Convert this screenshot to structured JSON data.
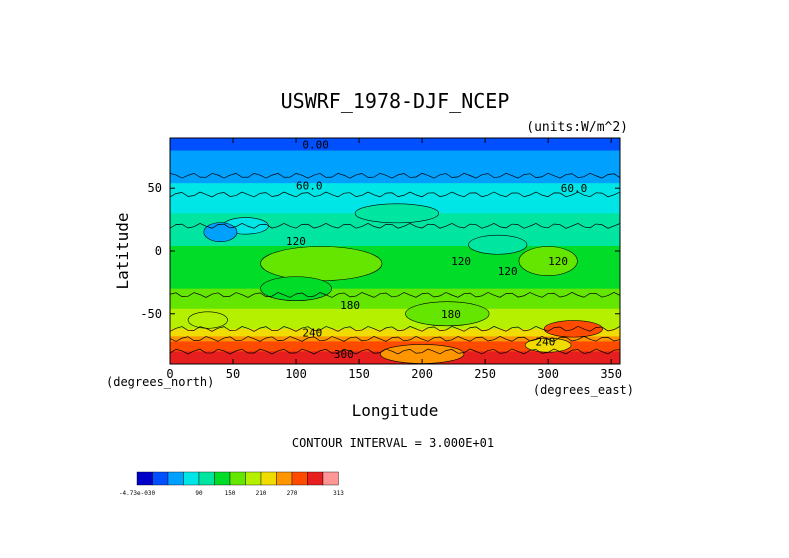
{
  "chart_data": {
    "type": "heatmap",
    "title": "USWRF_1978-DJF_NCEP",
    "units": "(units:W/m^2)",
    "xlabel": "Longitude",
    "ylabel": "Latitude",
    "x_unit_note": "(degrees_east)",
    "y_unit_note": "(degrees_north)",
    "xlim": [
      0,
      357
    ],
    "ylim": [
      -90,
      90
    ],
    "x_ticks": [
      "0",
      "50",
      "100",
      "150",
      "200",
      "250",
      "300",
      "350"
    ],
    "x_tick_values": [
      0,
      50,
      100,
      150,
      200,
      250,
      300,
      350
    ],
    "y_ticks": [
      "50",
      "0",
      "-50"
    ],
    "y_tick_values": [
      50,
      0,
      -50
    ],
    "contour_interval_text": "CONTOUR INTERVAL = 3.000E+01",
    "contour_labels": [
      "0.00",
      "60.0",
      "60.0",
      "120",
      "120",
      "120",
      "120",
      "180",
      "180",
      "240",
      "240",
      "300"
    ],
    "colorbar": {
      "colors": [
        "#0000c8",
        "#0050ff",
        "#00a0ff",
        "#00e6e6",
        "#00e6a0",
        "#00dc28",
        "#64e600",
        "#b4f000",
        "#f0dc00",
        "#ff9600",
        "#ff4b00",
        "#e61e1e",
        "#ff9696"
      ],
      "tick_labels": [
        "-4.73e-030",
        "90",
        "150",
        "210",
        "270",
        "313"
      ]
    },
    "zonal_profile": {
      "latitude": [
        90,
        80,
        70,
        60,
        50,
        40,
        30,
        20,
        10,
        0,
        -10,
        -20,
        -30,
        -40,
        -50,
        -60,
        -65,
        -70,
        -75,
        -80,
        -85,
        -90
      ],
      "value": [
        0,
        30,
        40,
        50,
        65,
        80,
        90,
        100,
        110,
        125,
        140,
        145,
        150,
        170,
        185,
        200,
        225,
        260,
        285,
        300,
        310,
        313
      ]
    }
  }
}
